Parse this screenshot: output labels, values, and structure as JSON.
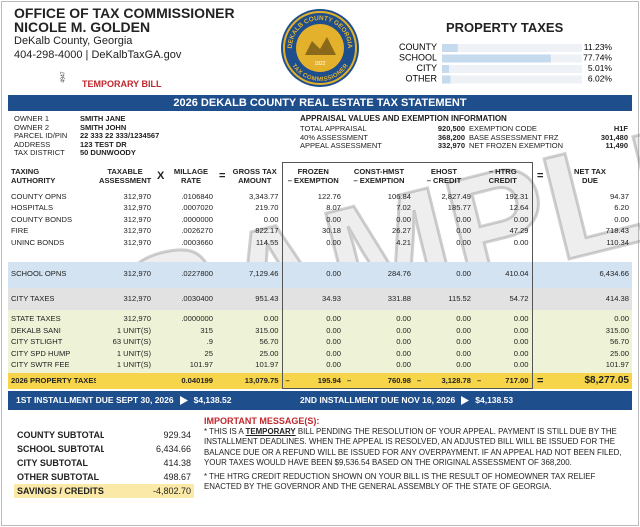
{
  "header": {
    "office": "OFFICE OF TAX COMMISSIONER",
    "name": "NICOLE M. GOLDEN",
    "county": "DeKalb County, Georgia",
    "contact": "404-298-4000 | DeKalbTaxGA.gov",
    "code": "4947",
    "bill_type": "TEMPORARY BILL"
  },
  "seal": {
    "top": "DEKALB COUNTY GEORGIA",
    "bottom": "TAX COMMISSIONER",
    "year": "1822"
  },
  "property_taxes": {
    "title": "PROPERTY TAXES",
    "categories": [
      "COUNTY",
      "SCHOOL",
      "CITY",
      "OTHER"
    ],
    "values": [
      11.23,
      77.74,
      5.01,
      6.02
    ],
    "value_labels": [
      "11.23%",
      "77.74%",
      "5.01%",
      "6.02%"
    ]
  },
  "statement_title": "2026 DEKALB COUNTY REAL ESTATE TAX STATEMENT",
  "owner": {
    "rows": [
      [
        "OWNER 1",
        "SMITH JANE"
      ],
      [
        "OWNER 2",
        "SMITH JOHN"
      ],
      [
        "PARCEL ID/PIN",
        "22 333 22 333/1234567"
      ],
      [
        "ADDRESS",
        "123 TEST DR"
      ],
      [
        "TAX DISTRICT",
        "50  DUNWOODY"
      ]
    ]
  },
  "appraisal": {
    "title": "APPRAISAL VALUES AND EXEMPTION INFORMATION",
    "rows": [
      [
        "TOTAL APPRAISAL",
        "920,500",
        "EXEMPTION CODE",
        "H1F"
      ],
      [
        "40% ASSESSMENT",
        "368,200",
        "BASE ASSESSMENT FRZ",
        "301,480"
      ],
      [
        "APPEAL ASSESSMENT",
        "332,970",
        "NET FROZEN EXEMPTION",
        "11,490"
      ]
    ]
  },
  "table": {
    "header": [
      [
        "TAXING",
        "AUTHORITY"
      ],
      [
        "TAXABLE",
        "ASSESSMENT"
      ],
      [
        "X"
      ],
      [
        "MILLAGE",
        "RATE"
      ],
      [
        "="
      ],
      [
        "GROSS TAX",
        "AMOUNT"
      ],
      [
        "FROZEN",
        "– EXEMPTION"
      ],
      [
        "CONST-HMST",
        "– EXEMPTION"
      ],
      [
        "EHOST",
        "– CREDIT"
      ],
      [
        "– HTRG",
        "CREDIT"
      ],
      [
        "="
      ],
      [
        "NET TAX",
        "DUE"
      ]
    ],
    "groups": [
      [
        [
          "COUNTY OPNS",
          "312,970",
          ".0106840",
          "3,343.77",
          "122.76",
          "106.84",
          "2,827.49",
          "192.31",
          "94.37"
        ],
        [
          "HOSPITALS",
          "312,970",
          ".0007020",
          "219.70",
          "8.07",
          "7.02",
          "185.77",
          "12.64",
          "6.20"
        ],
        [
          "COUNTY BONDS",
          "312,970",
          ".0000000",
          "0.00",
          "0.00",
          "0.00",
          "0.00",
          "0.00",
          "0.00"
        ],
        [
          "FIRE",
          "312,970",
          ".0026270",
          "822.17",
          "30.18",
          "26.27",
          "0.00",
          "47.29",
          "718.43"
        ],
        [
          "UNINC BONDS",
          "312,970",
          ".0003660",
          "114.55",
          "0.00",
          "4.21",
          "0.00",
          "0.00",
          "110.34"
        ]
      ],
      [
        [
          "SCHOOL OPNS",
          "312,970",
          ".0227800",
          "7,129.46",
          "0.00",
          "284.76",
          "0.00",
          "410.04",
          "6,434.66"
        ]
      ],
      [
        [
          "CITY TAXES",
          "312,970",
          ".0030400",
          "951.43",
          "34.93",
          "331.88",
          "115.52",
          "54.72",
          "414.38"
        ]
      ],
      [
        [
          "STATE TAXES",
          "312,970",
          ".0000000",
          "0.00",
          "0.00",
          "0.00",
          "0.00",
          "0.00",
          "0.00"
        ],
        [
          "DEKALB SANI",
          "1 UNIT(S)",
          "315",
          "315.00",
          "0.00",
          "0.00",
          "0.00",
          "0.00",
          "315.00"
        ],
        [
          "CITY STLIGHT",
          "63 UNIT(S)",
          ".9",
          "56.70",
          "0.00",
          "0.00",
          "0.00",
          "0.00",
          "56.70"
        ],
        [
          "CITY SPD HUMP",
          "1 UNIT(S)",
          "25",
          "25.00",
          "0.00",
          "0.00",
          "0.00",
          "0.00",
          "25.00"
        ],
        [
          "CITY SWTR FEE",
          "1 UNIT(S)",
          "101.97",
          "101.97",
          "0.00",
          "0.00",
          "0.00",
          "0.00",
          "101.97"
        ]
      ]
    ],
    "total": [
      "2026 PROPERTY TAXES",
      null,
      null,
      "0.040199",
      null,
      "13,079.75",
      [
        "–",
        "195.94"
      ],
      [
        "–",
        "760.98"
      ],
      [
        "–",
        "3,128.78"
      ],
      [
        "–",
        "717.00"
      ],
      "=",
      "$8,277.05"
    ]
  },
  "installments": [
    {
      "label": "1ST INSTALLMENT DUE SEPT 30, 2026",
      "amount": "$4,138.52"
    },
    {
      "label": "2ND INSTALLMENT DUE NOV 16, 2026",
      "amount": "$4,138.53"
    }
  ],
  "subtotals": [
    [
      "COUNTY SUBTOTAL",
      "929.34"
    ],
    [
      "SCHOOL SUBTOTAL",
      "6,434.66"
    ],
    [
      "CITY SUBTOTAL",
      "414.38"
    ],
    [
      "OTHER SUBTOTAL",
      "498.67"
    ],
    [
      "SAVINGS / CREDITS",
      "-4,802.70"
    ]
  ],
  "messages": {
    "title": "IMPORTANT MESSAGE(S):",
    "items": [
      [
        "* THIS IS A ",
        "TEMPORARY",
        " BILL PENDING THE RESOLUTION OF YOUR APPEAL. PAYMENT IS STILL DUE BY THE INSTALLMENT DEADLINES. WHEN THE APPEAL IS RESOLVED, AN ADJUSTED BILL WILL BE ISSUED FOR THE BALANCE DUE OR A REFUND WILL BE ISSUED FOR ANY OVERPAYMENT. IF AN APPEAL HAD NOT BEEN FILED, YOUR TAXES WOULD HAVE BEEN $9,536.54 BASED ON THE ORIGINAL ASSESSMENT OF 368,200."
      ],
      [
        "* THE HTRG CREDIT REDUCTION SHOWN ON YOUR BILL IS THE RESULT OF HOMEOWNER TAX RELIEF ENACTED BY THE GOVERNOR AND THE GENERAL ASSEMBLY OF THE STATE OF GEORGIA."
      ]
    ]
  },
  "watermark": "SAMPLE"
}
